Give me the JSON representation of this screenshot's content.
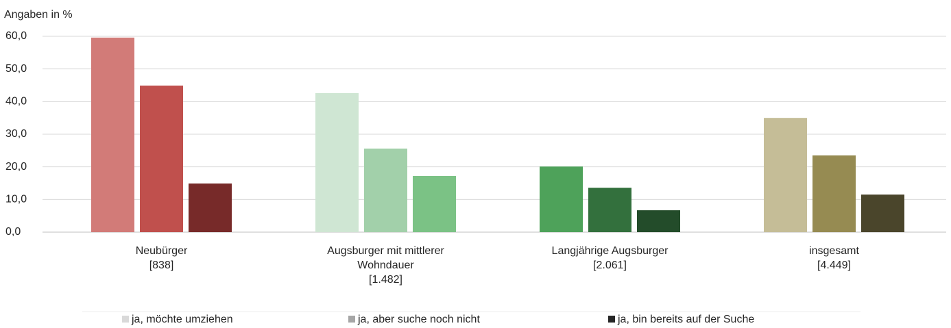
{
  "chart_data": {
    "type": "bar",
    "y_label": "Angaben in %",
    "categories": [
      [
        "Neubürger",
        "[838]"
      ],
      [
        "Augsburger mit mittlerer",
        "Wohndauer",
        "[1.482]"
      ],
      [
        "Langjährige Augsburger",
        "[2.061]"
      ],
      [
        "insgesamt",
        "[4.449]"
      ]
    ],
    "series": [
      {
        "name": "ja, möchte umziehen",
        "color": "#d9d9d9",
        "colors": [
          "#d27b78",
          "#cfe6d3",
          "#4ea25a",
          "#c5bd97"
        ],
        "values": [
          59.6,
          42.6,
          20.1,
          35.0
        ]
      },
      {
        "name": "ja, aber suche noch nicht",
        "color": "#a6a6a6",
        "colors": [
          "#c0504d",
          "#a2d0aa",
          "#33703d",
          "#968b52"
        ],
        "values": [
          44.9,
          25.6,
          13.6,
          23.5
        ]
      },
      {
        "name": "ja, bin bereits auf der Suche",
        "color": "#262626",
        "colors": [
          "#772a29",
          "#7bc285",
          "#234c2a",
          "#4a452b"
        ],
        "values": [
          14.9,
          17.2,
          6.7,
          11.5
        ]
      }
    ],
    "ylim": [
      0,
      60
    ],
    "yticks": [
      {
        "value": 0,
        "label": "0,0"
      },
      {
        "value": 10,
        "label": "10,0"
      },
      {
        "value": 20,
        "label": "20,0"
      },
      {
        "value": 30,
        "label": "30,0"
      },
      {
        "value": 40,
        "label": "40,0"
      },
      {
        "value": 50,
        "label": "50,0"
      },
      {
        "value": 60,
        "label": "60,0"
      }
    ],
    "grid": true,
    "legend": "bottom"
  }
}
